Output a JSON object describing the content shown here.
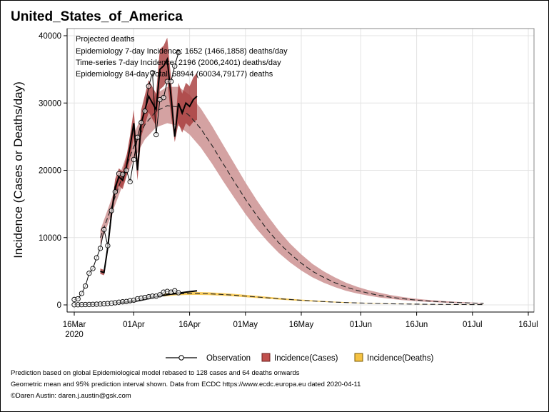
{
  "chart_data": {
    "type": "line",
    "title": "United_States_of_America",
    "ylabel": "Incidence (Cases or Deaths/day)",
    "xlabel": "",
    "ylim": [
      0,
      40000
    ],
    "yticks": [
      0,
      10000,
      20000,
      30000,
      40000
    ],
    "ytick_labels": [
      "0",
      "10000",
      "20000",
      "30000",
      "40000"
    ],
    "xlim_days": [
      0,
      122
    ],
    "xticks": [
      {
        "day": 0,
        "label": "16Mar",
        "sublabel": "2020"
      },
      {
        "day": 16,
        "label": "01Apr"
      },
      {
        "day": 31,
        "label": "16Apr"
      },
      {
        "day": 46,
        "label": "01May"
      },
      {
        "day": 61,
        "label": "16May"
      },
      {
        "day": 77,
        "label": "01Jun"
      },
      {
        "day": 92,
        "label": "16Jun"
      },
      {
        "day": 107,
        "label": "01Jul"
      },
      {
        "day": 122,
        "label": "16Jul"
      }
    ],
    "grid": true,
    "annotation_lines": [
      "Projected deaths",
      "Epidemiology 7-day Incidence:  1652 (1466,1858) deaths/day",
      "Time-series 7-day Incidence:  2196 (2006,2401) deaths/day",
      "Epidemiology 84-day Total:  68944 (60034,79177) deaths"
    ],
    "legend": {
      "position": "bottom",
      "entries": [
        {
          "label": "Observation",
          "kind": "line-marker"
        },
        {
          "label": "Incidence(Cases)",
          "kind": "band",
          "color": "#c0504d"
        },
        {
          "label": "Incidence(Deaths)",
          "kind": "band",
          "color": "#f5c242"
        }
      ]
    },
    "colors": {
      "cases_band": "#c98b8b",
      "cases_ts_band": "#a63a3a",
      "deaths_band": "#f5c242",
      "observation": "#000000"
    },
    "series": [
      {
        "name": "Observed cases",
        "x": [
          0,
          1,
          2,
          3,
          4,
          5,
          6,
          7,
          8,
          9,
          10,
          11,
          12,
          13,
          14,
          15,
          16,
          17,
          18,
          19,
          20,
          21,
          22,
          23,
          24,
          25,
          26,
          27,
          28
        ],
        "values": [
          800,
          900,
          1700,
          2800,
          4700,
          5400,
          7000,
          8400,
          11200,
          8800,
          14000,
          16800,
          19500,
          19400,
          20000,
          18300,
          21600,
          24900,
          27100,
          28800,
          32500,
          34500,
          25300,
          30500,
          30800,
          33200,
          33200,
          35500,
          37500
        ]
      },
      {
        "name": "Observed deaths",
        "x": [
          0,
          1,
          2,
          3,
          4,
          5,
          6,
          7,
          8,
          9,
          10,
          11,
          12,
          13,
          14,
          15,
          16,
          17,
          18,
          19,
          20,
          21,
          22,
          23,
          24,
          25,
          26,
          27,
          28
        ],
        "values": [
          20,
          25,
          40,
          50,
          60,
          80,
          100,
          130,
          160,
          200,
          250,
          320,
          400,
          460,
          500,
          620,
          700,
          900,
          1000,
          1100,
          1200,
          1300,
          1300,
          1500,
          1900,
          2000,
          1900,
          2100,
          1800
        ]
      },
      {
        "name": "Epidemiology cases (geometric mean)",
        "x": [
          7,
          10,
          13,
          16,
          19,
          22,
          25,
          28,
          31,
          34,
          37,
          40,
          43,
          46,
          49,
          52,
          55,
          58,
          61,
          64,
          67,
          70,
          73,
          76,
          79,
          82,
          85,
          88,
          91,
          94,
          97,
          100,
          103,
          106,
          109,
          110
        ],
        "values": [
          10000,
          14500,
          19200,
          23500,
          26800,
          28800,
          29600,
          29400,
          28100,
          26200,
          23700,
          21000,
          18300,
          15700,
          13300,
          11100,
          9200,
          7600,
          6200,
          5000,
          4100,
          3300,
          2650,
          2150,
          1750,
          1400,
          1150,
          930,
          760,
          620,
          510,
          420,
          350,
          290,
          240,
          230
        ],
        "lower": [
          9000,
          13400,
          17800,
          21600,
          24600,
          26400,
          27000,
          26600,
          25300,
          23400,
          21000,
          18400,
          15900,
          13500,
          11300,
          9400,
          7700,
          6300,
          5100,
          4100,
          3300,
          2650,
          2100,
          1700,
          1380,
          1100,
          900,
          720,
          590,
          480,
          390,
          320,
          265,
          220,
          180,
          170
        ],
        "upper": [
          11100,
          15700,
          20600,
          25400,
          29100,
          31400,
          32400,
          32400,
          31200,
          29200,
          26600,
          23800,
          21000,
          18200,
          15600,
          13200,
          11000,
          9100,
          7500,
          6100,
          5000,
          4100,
          3300,
          2700,
          2200,
          1800,
          1450,
          1190,
          970,
          800,
          660,
          540,
          450,
          370,
          310,
          300
        ]
      },
      {
        "name": "Epidemiology deaths (geometric mean)",
        "x": [
          24,
          27,
          30,
          33,
          36,
          39,
          42,
          45,
          48,
          51,
          54,
          57,
          60,
          63,
          66,
          69,
          72,
          75,
          78,
          81,
          84,
          87,
          90,
          93,
          96,
          99,
          102,
          105,
          108,
          110
        ],
        "values": [
          1450,
          1600,
          1680,
          1690,
          1650,
          1570,
          1470,
          1350,
          1220,
          1090,
          960,
          840,
          720,
          620,
          520,
          440,
          370,
          310,
          260,
          215,
          180,
          150,
          125,
          105,
          88,
          74,
          62,
          52,
          44,
          40
        ],
        "lower": [
          1250,
          1400,
          1480,
          1490,
          1450,
          1380,
          1290,
          1180,
          1060,
          940,
          830,
          720,
          620,
          530,
          450,
          380,
          320,
          265,
          220,
          185,
          155,
          128,
          107,
          90,
          75,
          63,
          53,
          45,
          38,
          34
        ],
        "upper": [
          1660,
          1820,
          1900,
          1910,
          1870,
          1790,
          1680,
          1540,
          1400,
          1250,
          1100,
          960,
          830,
          710,
          600,
          510,
          430,
          360,
          300,
          250,
          210,
          175,
          146,
          122,
          102,
          86,
          72,
          60,
          51,
          46
        ]
      },
      {
        "name": "Time-series cases",
        "x": [
          7,
          8,
          9,
          10,
          11,
          12,
          13,
          14,
          15,
          16,
          17,
          18,
          19,
          20,
          21,
          22,
          23,
          24,
          25,
          26,
          27,
          28,
          29,
          30,
          31,
          32,
          33
        ],
        "values": [
          5000,
          4800,
          8500,
          13500,
          17500,
          19000,
          18500,
          20500,
          23500,
          27000,
          20000,
          27000,
          29000,
          31000,
          30000,
          29000,
          35000,
          35500,
          36500,
          31000,
          25000,
          30000,
          28500,
          30000,
          29500,
          30500,
          31000
        ],
        "lower": [
          4600,
          4400,
          7900,
          12600,
          16300,
          17700,
          17200,
          19000,
          21800,
          25000,
          18500,
          25000,
          26800,
          28600,
          27600,
          26600,
          32000,
          32500,
          33300,
          28200,
          24200,
          27000,
          25600,
          27000,
          26500,
          27200,
          27500
        ],
        "upper": [
          5400,
          5200,
          9100,
          14400,
          18700,
          20300,
          19800,
          22000,
          25200,
          29000,
          21500,
          29000,
          31200,
          33400,
          32400,
          31400,
          38000,
          38500,
          39700,
          33800,
          25800,
          33000,
          31400,
          33000,
          32500,
          33800,
          34500
        ]
      },
      {
        "name": "Time-series deaths",
        "x": [
          12,
          14,
          16,
          18,
          20,
          22,
          24,
          26,
          28,
          30,
          33
        ],
        "values": [
          300,
          380,
          500,
          700,
          950,
          1200,
          1400,
          1600,
          1750,
          1900,
          2100
        ]
      }
    ],
    "footer_lines": [
      "Prediction based on global Epidemiological model rebased to 128 cases and 64 deaths onwards",
      "Geometric mean and 95% prediction interval shown. Data from ECDC https://www.ecdc.europa.eu dated 2020-04-11",
      "©Daren Austin: daren.j.austin@gsk.com"
    ]
  }
}
